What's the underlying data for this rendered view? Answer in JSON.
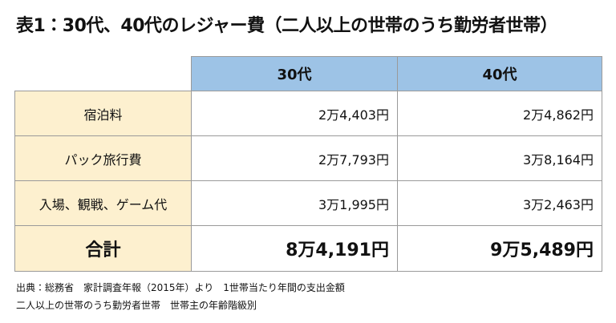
{
  "title": "表1：30代、40代のレジャー費（二人以上の世帯のうち勤労者世帯）",
  "table": {
    "header": [
      "30代",
      "40代"
    ],
    "rows": [
      [
        "宿泊料",
        "2万4,403円",
        "2万4,862円"
      ],
      [
        "パック旅行費",
        "2万7,793円",
        "3万8,164円"
      ],
      [
        "入場、観戦、ゲーム代",
        "3万1,995円",
        "3万2,463円"
      ],
      [
        "合計",
        "8万4,191円",
        "9万5,489円"
      ]
    ]
  },
  "source": [
    "出典：総務省　家計調査年報（2015年）より　1世帯当たり年間の支出金額",
    "二人以上の世帯のうち勤労者世帯　世帯主の年齢階級別"
  ]
}
